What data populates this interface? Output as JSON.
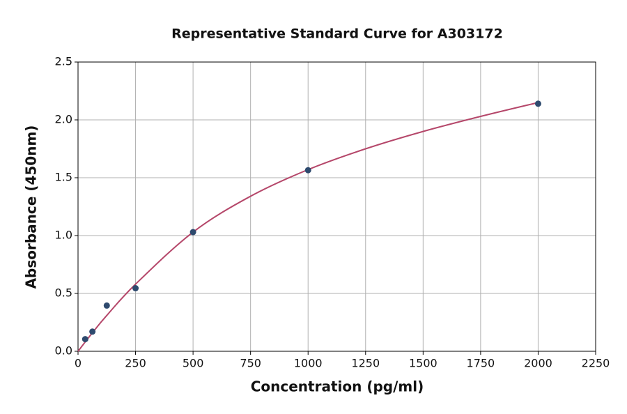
{
  "chart_data": {
    "type": "scatter",
    "title": "Representative Standard Curve for A303172",
    "x_label": "Concentration (pg/ml)",
    "y_label": "Absorbance (450nm)",
    "xlim": [
      0,
      2250
    ],
    "ylim": [
      0,
      2.5
    ],
    "xticks": [
      0,
      250,
      500,
      750,
      1000,
      1250,
      1500,
      1750,
      2000,
      2250
    ],
    "yticks": [
      {
        "value": 0,
        "label": "0.0"
      },
      0.5,
      {
        "value": 1,
        "label": "1.0"
      },
      1.5,
      {
        "value": 2,
        "label": "2.0"
      },
      2.5
    ],
    "grid": true,
    "points": {
      "color": "#2e4a6e",
      "x": [
        31.25,
        62.5,
        125,
        250,
        500,
        1000,
        2000
      ],
      "y": [
        0.105,
        0.17,
        0.395,
        0.545,
        1.03,
        1.565,
        2.14
      ]
    },
    "curve": {
      "color": "#b5476a",
      "x": [
        0,
        62.5,
        125,
        250,
        500,
        750,
        1000,
        1250,
        1500,
        1750,
        2000
      ],
      "y": [
        0.0,
        0.16,
        0.31,
        0.58,
        1.03,
        1.34,
        1.57,
        1.75,
        1.9,
        2.03,
        2.15
      ]
    }
  }
}
